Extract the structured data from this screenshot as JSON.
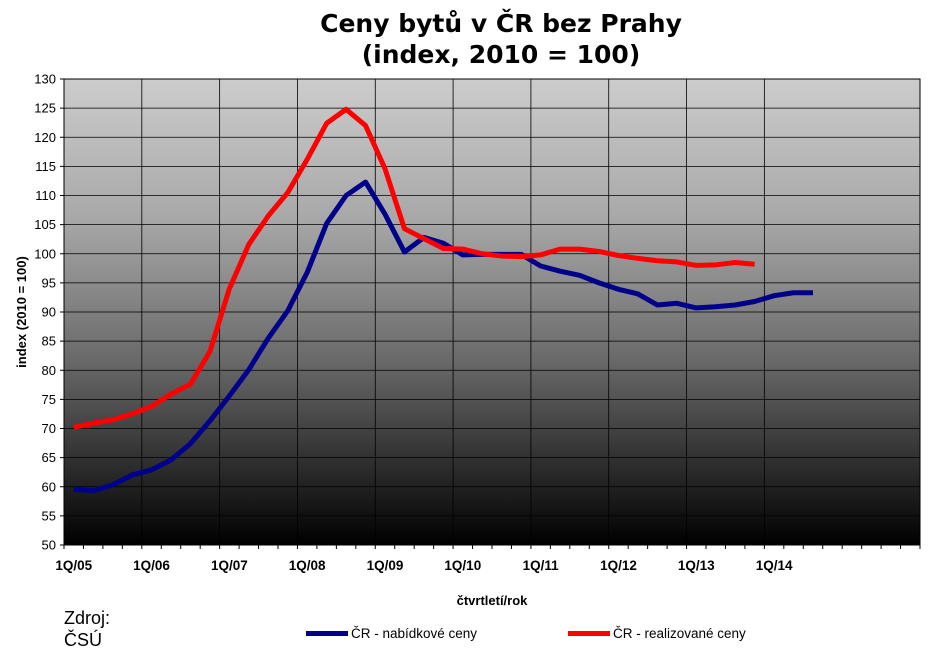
{
  "chart_data": {
    "type": "line",
    "title": [
      "Ceny bytů v ČR bez Prahy",
      "(index, 2010 = 100)"
    ],
    "xlabel": "čtvrtletí/rok",
    "ylabel": "index (2010 = 100)",
    "ylim": [
      50,
      130
    ],
    "yticks": [
      "50",
      "55",
      "60",
      "65",
      "70",
      "75",
      "80",
      "85",
      "90",
      "95",
      "100",
      "105",
      "110",
      "115",
      "120",
      "125",
      "130"
    ],
    "x_tick_labels": [
      "1Q/05",
      "1Q/06",
      "1Q/07",
      "1Q/08",
      "1Q/09",
      "1Q/10",
      "1Q/11",
      "1Q/12",
      "1Q/13",
      "1Q/14"
    ],
    "periods": [
      "1Q/05",
      "2Q/05",
      "3Q/05",
      "4Q/05",
      "1Q/06",
      "2Q/06",
      "3Q/06",
      "4Q/06",
      "1Q/07",
      "2Q/07",
      "3Q/07",
      "4Q/07",
      "1Q/08",
      "2Q/08",
      "3Q/08",
      "4Q/08",
      "1Q/09",
      "2Q/09",
      "3Q/09",
      "4Q/09",
      "1Q/10",
      "2Q/10",
      "3Q/10",
      "4Q/10",
      "1Q/11",
      "2Q/11",
      "3Q/11",
      "4Q/11",
      "1Q/12",
      "2Q/12",
      "3Q/12",
      "4Q/12",
      "1Q/13",
      "2Q/13",
      "3Q/13",
      "4Q/13",
      "1Q/14",
      "2Q/14",
      "3Q/14"
    ],
    "grid": true,
    "legend_position": "bottom",
    "series": [
      {
        "name": "ČR - nabídkové ceny",
        "color": "#00008B",
        "values": [
          59.6,
          59.3,
          60.3,
          62.0,
          62.9,
          64.6,
          67.4,
          71.3,
          75.6,
          80.1,
          85.5,
          90.2,
          96.8,
          105.2,
          110.0,
          112.3,
          106.8,
          100.3,
          102.8,
          101.8,
          99.8,
          99.9,
          99.9,
          99.9,
          97.9,
          97.0,
          96.3,
          95.0,
          93.9,
          93.1,
          91.2,
          91.5,
          90.7,
          90.9,
          91.2,
          91.8,
          92.8,
          93.3,
          93.3
        ]
      },
      {
        "name": "ČR - realizované ceny",
        "color": "#FF0000",
        "values": [
          70.2,
          70.9,
          71.5,
          72.5,
          73.8,
          75.9,
          77.6,
          83.2,
          94.0,
          101.6,
          106.5,
          110.5,
          116.2,
          122.4,
          124.8,
          122.0,
          114.6,
          104.3,
          102.6,
          100.9,
          100.8,
          100.0,
          99.6,
          99.5,
          99.8,
          100.8,
          100.8,
          100.4,
          99.7,
          99.2,
          98.8,
          98.6,
          98.0,
          98.1,
          98.5,
          98.2,
          null,
          null,
          null
        ]
      }
    ]
  },
  "source": {
    "line1": "Zdroj:",
    "line2": "ČSÚ"
  }
}
